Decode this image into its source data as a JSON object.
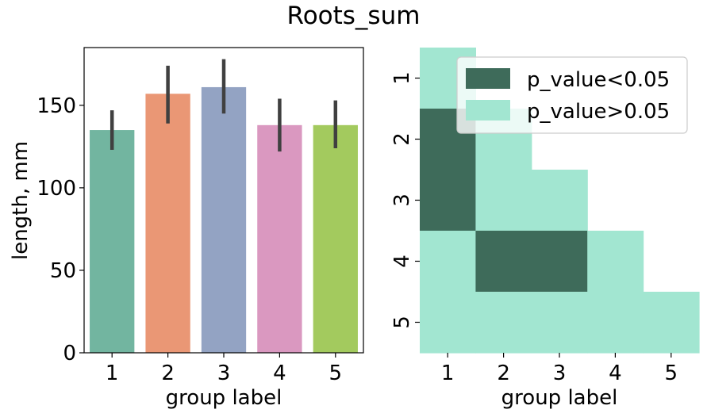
{
  "title": "Roots_sum",
  "chart_data": [
    {
      "type": "bar",
      "categories": [
        "1",
        "2",
        "3",
        "4",
        "5"
      ],
      "values": [
        135,
        157,
        161,
        138,
        138
      ],
      "ci_low": [
        123,
        139,
        145,
        122,
        124
      ],
      "ci_high": [
        147,
        174,
        178,
        154,
        153
      ],
      "colors": [
        "#72b5a0",
        "#ea9775",
        "#93a3c3",
        "#da98c0",
        "#a3ca5e"
      ],
      "xlabel": "group label",
      "ylabel": "length, mm",
      "ylim": [
        0,
        185
      ],
      "yticks": [
        0,
        50,
        100,
        150
      ],
      "grid": false
    },
    {
      "type": "heatmap",
      "xlabel": "group label",
      "x_categories": [
        "1",
        "2",
        "3",
        "4",
        "5"
      ],
      "y_categories": [
        "1",
        "2",
        "3",
        "4",
        "5"
      ],
      "matrix": [
        [
          0,
          null,
          null,
          null,
          null
        ],
        [
          1,
          0,
          null,
          null,
          null
        ],
        [
          1,
          0,
          0,
          null,
          null
        ],
        [
          0,
          1,
          1,
          0,
          null
        ],
        [
          0,
          0,
          0,
          0,
          0
        ]
      ],
      "legend": [
        {
          "label": "p_value<0.05",
          "color": "#3e6b5a"
        },
        {
          "label": "p_value>0.05",
          "color": "#a2e6d1"
        }
      ],
      "legend_position": "upper-right"
    }
  ]
}
